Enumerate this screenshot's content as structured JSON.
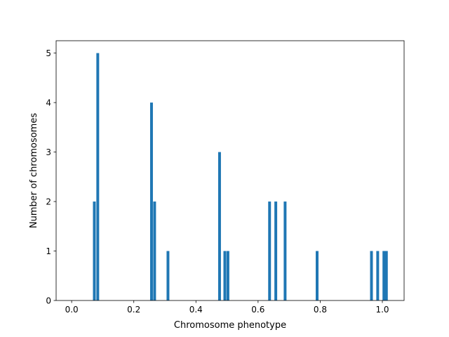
{
  "chart_data": {
    "type": "bar",
    "title": "",
    "xlabel": "Chromosome phenotype",
    "ylabel": "Number of chromosomes",
    "xlim": [
      -0.05,
      1.07
    ],
    "ylim": [
      0,
      5.25
    ],
    "bar_width": 0.009,
    "grid": false,
    "color": "#1f77b4",
    "xticks": [
      {
        "value": 0.0,
        "label": "0.0"
      },
      {
        "value": 0.2,
        "label": "0.2"
      },
      {
        "value": 0.4,
        "label": "0.4"
      },
      {
        "value": 0.6,
        "label": "0.6"
      },
      {
        "value": 0.8,
        "label": "0.8"
      },
      {
        "value": 1.0,
        "label": "1.0"
      }
    ],
    "yticks": [
      {
        "value": 0,
        "label": "0"
      },
      {
        "value": 1,
        "label": "1"
      },
      {
        "value": 2,
        "label": "2"
      },
      {
        "value": 3,
        "label": "3"
      },
      {
        "value": 4,
        "label": "4"
      },
      {
        "value": 5,
        "label": "5"
      }
    ],
    "bars": [
      {
        "x": 0.073,
        "y": 2
      },
      {
        "x": 0.084,
        "y": 5
      },
      {
        "x": 0.257,
        "y": 4
      },
      {
        "x": 0.267,
        "y": 2
      },
      {
        "x": 0.31,
        "y": 1
      },
      {
        "x": 0.476,
        "y": 3
      },
      {
        "x": 0.493,
        "y": 1
      },
      {
        "x": 0.503,
        "y": 1
      },
      {
        "x": 0.637,
        "y": 2
      },
      {
        "x": 0.657,
        "y": 2
      },
      {
        "x": 0.687,
        "y": 2
      },
      {
        "x": 0.79,
        "y": 1
      },
      {
        "x": 0.965,
        "y": 1
      },
      {
        "x": 0.985,
        "y": 1
      },
      {
        "x": 1.005,
        "y": 1
      },
      {
        "x": 1.013,
        "y": 1
      }
    ]
  }
}
